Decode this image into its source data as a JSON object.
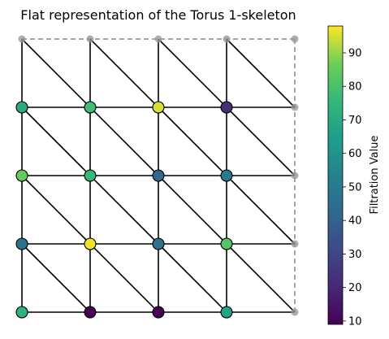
{
  "title": "Flat representation of the Torus 1-skeleton",
  "chart_data": {
    "type": "scatter",
    "title": "Flat representation of the Torus 1-skeleton",
    "grid_size": 4,
    "vertices": [
      {
        "col": 0,
        "row": 0,
        "value": 73
      },
      {
        "col": 1,
        "row": 0,
        "value": 9
      },
      {
        "col": 2,
        "row": 0,
        "value": 10
      },
      {
        "col": 3,
        "row": 0,
        "value": 67
      },
      {
        "col": 0,
        "row": 1,
        "value": 47
      },
      {
        "col": 1,
        "row": 1,
        "value": 97
      },
      {
        "col": 2,
        "row": 1,
        "value": 47
      },
      {
        "col": 3,
        "row": 1,
        "value": 82
      },
      {
        "col": 0,
        "row": 2,
        "value": 85
      },
      {
        "col": 1,
        "row": 2,
        "value": 76
      },
      {
        "col": 2,
        "row": 2,
        "value": 43
      },
      {
        "col": 3,
        "row": 2,
        "value": 50
      },
      {
        "col": 0,
        "row": 3,
        "value": 70
      },
      {
        "col": 1,
        "row": 3,
        "value": 78
      },
      {
        "col": 2,
        "row": 3,
        "value": 95
      },
      {
        "col": 3,
        "row": 3,
        "value": 22
      }
    ],
    "colorbar": {
      "label": "Filtration Value",
      "min": 9,
      "max": 98,
      "ticks": [
        10,
        20,
        30,
        40,
        50,
        60,
        70,
        80,
        90
      ]
    },
    "colors": {
      "edge": "#000000",
      "boundary": "#888888",
      "ghost_vertex": "#999999"
    }
  }
}
